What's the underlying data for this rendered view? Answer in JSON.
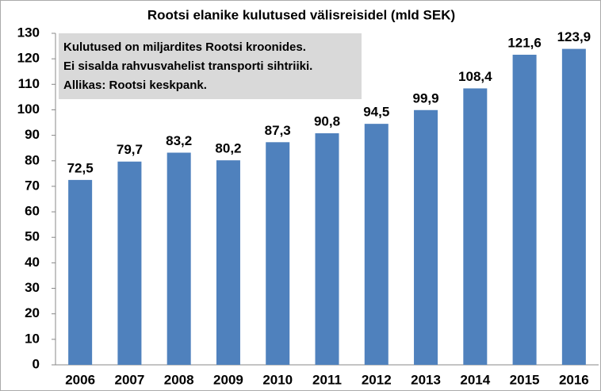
{
  "chart_data": {
    "type": "bar",
    "title": "Rootsi elanike kulutused välisreisidel (mld SEK)",
    "annotation": [
      "Kulutused on miljardites Rootsi kroonides.",
      "Ei sisalda rahvusvahelist transporti sihtriiki.",
      "Allikas: Rootsi keskpank."
    ],
    "categories": [
      "2006",
      "2007",
      "2008",
      "2009",
      "2010",
      "2011",
      "2012",
      "2013",
      "2014",
      "2015",
      "2016"
    ],
    "values": [
      72.5,
      79.7,
      83.2,
      80.2,
      87.3,
      90.8,
      94.5,
      99.9,
      108.4,
      121.6,
      123.9
    ],
    "value_labels": [
      "72,5",
      "79,7",
      "83,2",
      "80,2",
      "87,3",
      "90,8",
      "94,5",
      "99,9",
      "108,4",
      "121,6",
      "123,9"
    ],
    "color": "#4f81bd",
    "ylim": [
      0,
      130
    ],
    "yticks": [
      0,
      10,
      20,
      30,
      40,
      50,
      60,
      70,
      80,
      90,
      100,
      110,
      120,
      130
    ],
    "grid": false
  }
}
